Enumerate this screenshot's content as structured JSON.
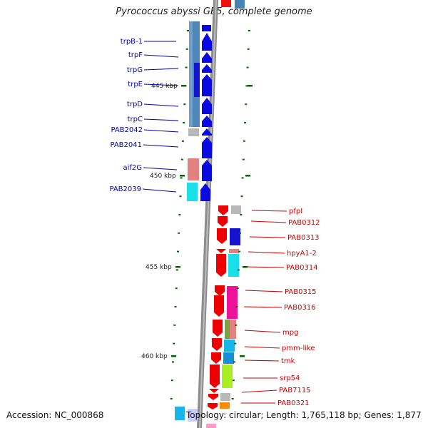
{
  "title": "Pyrococcus abyssi GE5, complete genome",
  "accession": "Accession: NC_000868",
  "topology": "Topology: circular; Length: 1,765,118 bp; Genes: 1,877",
  "colors": {
    "left_label": "#0000aa",
    "right_label": "#cc0000",
    "axis": "#888888",
    "tick": "#006600"
  },
  "scale_marks": [
    {
      "label": "445 kbp",
      "kbp": 445
    },
    {
      "label": "450 kbp",
      "kbp": 450
    },
    {
      "label": "455 kbp",
      "kbp": 455
    },
    {
      "label": "460 kbp",
      "kbp": 460
    }
  ],
  "left_genes": [
    {
      "label": "trpB-1"
    },
    {
      "label": "trpF"
    },
    {
      "label": "trpG"
    },
    {
      "label": "trpE"
    },
    {
      "label": "trpD"
    },
    {
      "label": "trpC"
    },
    {
      "label": "PAB2042"
    },
    {
      "label": "PAB2041"
    },
    {
      "label": "aif2G"
    },
    {
      "label": "PAB2039"
    }
  ],
  "right_genes": [
    {
      "label": "pfpI"
    },
    {
      "label": "PAB0312"
    },
    {
      "label": "PAB0313"
    },
    {
      "label": "hpyA1-2"
    },
    {
      "label": "PAB0314"
    },
    {
      "label": "PAB0315"
    },
    {
      "label": "PAB0316"
    },
    {
      "label": "mpg"
    },
    {
      "label": "pmm-like"
    },
    {
      "label": "tmk"
    },
    {
      "label": "srp54"
    },
    {
      "label": "PAB7115"
    },
    {
      "label": "PAB0321"
    }
  ]
}
